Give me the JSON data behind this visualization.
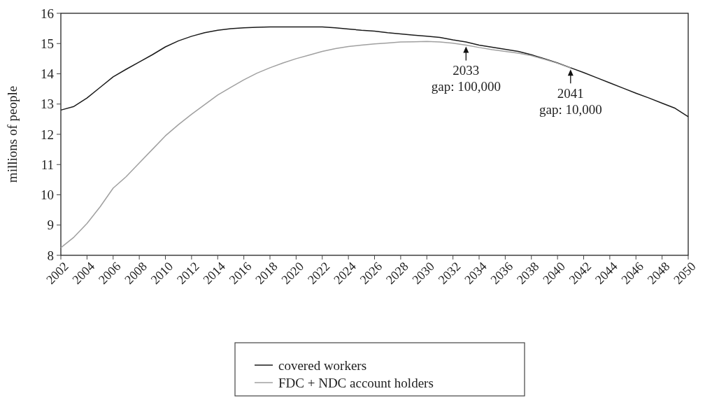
{
  "chart_data": {
    "type": "line",
    "ylabel": "millions of people",
    "ylim": [
      8,
      16
    ],
    "yticks": [
      8,
      9,
      10,
      11,
      12,
      13,
      14,
      15,
      16
    ],
    "xlim": [
      2002,
      2050
    ],
    "xticks": [
      2002,
      2004,
      2006,
      2008,
      2010,
      2012,
      2014,
      2016,
      2018,
      2020,
      2022,
      2024,
      2026,
      2028,
      2030,
      2032,
      2034,
      2036,
      2038,
      2040,
      2042,
      2044,
      2046,
      2048,
      2050
    ],
    "grid": false,
    "legend": "bottom",
    "marker": "none",
    "line_style": "solid",
    "series": [
      {
        "name": "covered workers",
        "color": "#1a1a1a",
        "x": [
          2002,
          2003,
          2004,
          2005,
          2006,
          2007,
          2008,
          2009,
          2010,
          2011,
          2012,
          2013,
          2014,
          2015,
          2016,
          2017,
          2018,
          2019,
          2020,
          2021,
          2022,
          2023,
          2024,
          2025,
          2026,
          2027,
          2028,
          2029,
          2030,
          2031,
          2032,
          2033,
          2034,
          2035,
          2036,
          2037,
          2038,
          2039,
          2040,
          2041,
          2042,
          2043,
          2044,
          2045,
          2046,
          2047,
          2048,
          2049,
          2050
        ],
        "values": [
          12.8,
          12.92,
          13.2,
          13.55,
          13.9,
          14.15,
          14.39,
          14.63,
          14.89,
          15.09,
          15.24,
          15.36,
          15.44,
          15.49,
          15.52,
          15.54,
          15.55,
          15.55,
          15.55,
          15.55,
          15.55,
          15.52,
          15.48,
          15.44,
          15.41,
          15.36,
          15.32,
          15.28,
          15.24,
          15.2,
          15.12,
          15.05,
          14.95,
          14.88,
          14.81,
          14.74,
          14.63,
          14.5,
          14.36,
          14.2,
          14.04,
          13.87,
          13.7,
          13.53,
          13.36,
          13.2,
          13.03,
          12.86,
          12.58
        ]
      },
      {
        "name": "FDC + NDC account holders",
        "color": "#a0a0a0",
        "x": [
          2002,
          2003,
          2004,
          2005,
          2006,
          2007,
          2008,
          2009,
          2010,
          2011,
          2012,
          2013,
          2014,
          2015,
          2016,
          2017,
          2018,
          2019,
          2020,
          2021,
          2022,
          2023,
          2024,
          2025,
          2026,
          2027,
          2028,
          2029,
          2030,
          2031,
          2032,
          2033,
          2034,
          2035,
          2036,
          2037,
          2038,
          2039,
          2040,
          2041
        ],
        "values": [
          8.25,
          8.6,
          9.05,
          9.6,
          10.22,
          10.6,
          11.05,
          11.5,
          11.95,
          12.32,
          12.66,
          12.98,
          13.3,
          13.55,
          13.8,
          14.02,
          14.2,
          14.36,
          14.5,
          14.62,
          14.74,
          14.83,
          14.9,
          14.95,
          14.99,
          15.02,
          15.05,
          15.06,
          15.07,
          15.05,
          15.01,
          14.95,
          14.87,
          14.8,
          14.74,
          14.68,
          14.6,
          14.48,
          14.35,
          14.19
        ]
      }
    ],
    "annotations": [
      {
        "text": "2033\ngap: 100,000",
        "x": 2033,
        "y": 14.95
      },
      {
        "text": "2041\ngap: 10,000",
        "x": 2041,
        "y": 14.19
      }
    ]
  }
}
